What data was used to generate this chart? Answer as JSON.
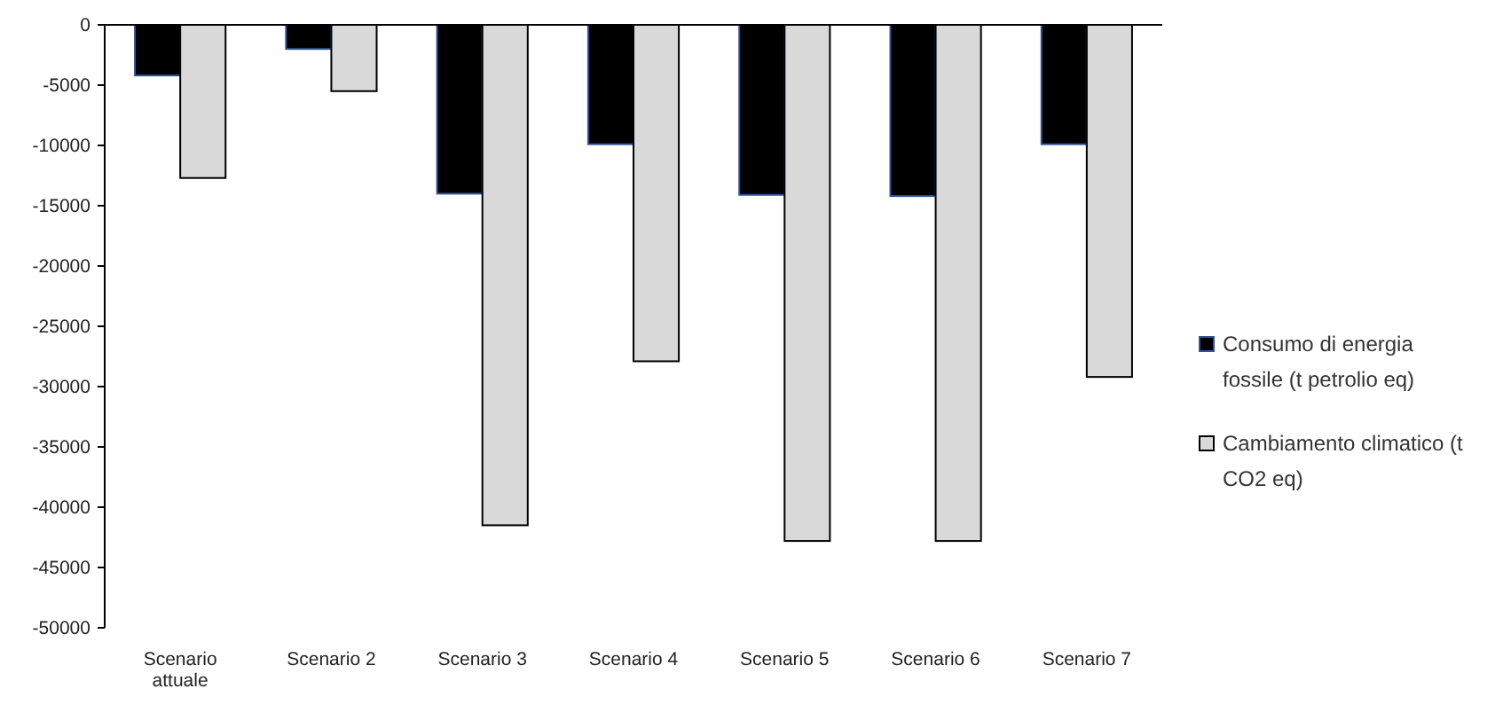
{
  "chart_data": {
    "type": "bar",
    "categories": [
      "Scenario attuale",
      "Scenario 2",
      "Scenario 3",
      "Scenario 4",
      "Scenario 5",
      "Scenario 6",
      "Scenario 7"
    ],
    "series": [
      {
        "name": "Consumo di energia fossile (t petrolio eq)",
        "color": "#000000",
        "values": [
          -4200,
          -2000,
          -14000,
          -9900,
          -14100,
          -14200,
          -9900
        ]
      },
      {
        "name": "Cambiamento climatico (t CO2 eq)",
        "color": "#d9d9d9",
        "values": [
          -12700,
          -5500,
          -41500,
          -27900,
          -42800,
          -42800,
          -29200
        ]
      }
    ],
    "ylim": [
      -50000,
      0
    ],
    "yticks": [
      0,
      -5000,
      -10000,
      -15000,
      -20000,
      -25000,
      -30000,
      -35000,
      -40000,
      -45000,
      -50000
    ],
    "grid": false,
    "legend": "right"
  }
}
